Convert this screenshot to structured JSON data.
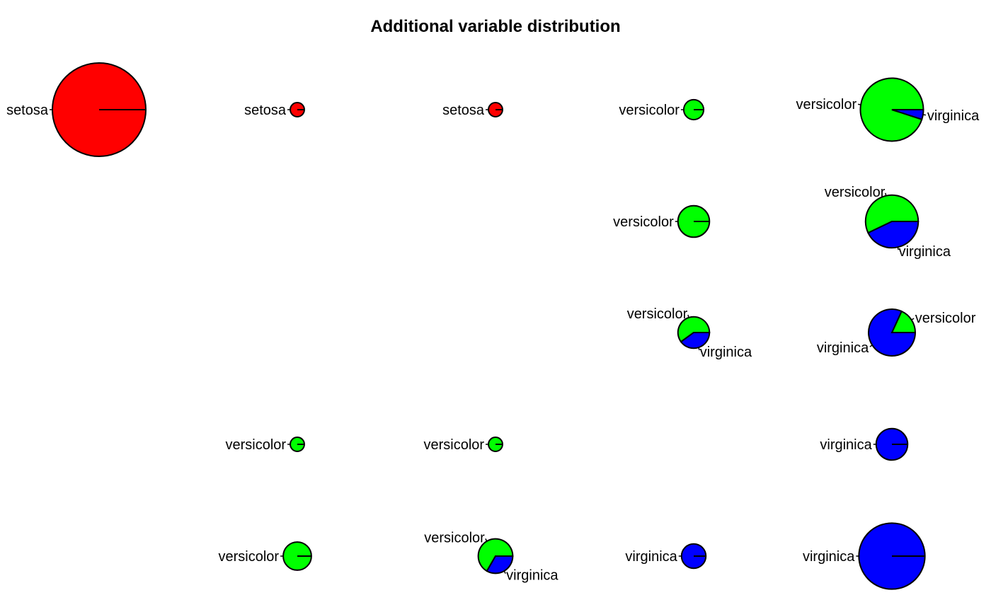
{
  "chart_data": {
    "type": "pie",
    "title": "Additional variable distribution",
    "colors": {
      "setosa": "#ff0000",
      "versicolor": "#00ff00",
      "virginica": "#0000ff"
    },
    "grid_columns": 5,
    "grid_rows": 5,
    "pies": [
      {
        "row": 1,
        "col": 1,
        "total": 44,
        "counts": {
          "setosa": 44,
          "versicolor": 0,
          "virginica": 0
        }
      },
      {
        "row": 1,
        "col": 2,
        "total": 1,
        "counts": {
          "setosa": 1,
          "versicolor": 0,
          "virginica": 0
        }
      },
      {
        "row": 1,
        "col": 3,
        "total": 1,
        "counts": {
          "setosa": 1,
          "versicolor": 0,
          "virginica": 0
        }
      },
      {
        "row": 1,
        "col": 4,
        "total": 2,
        "counts": {
          "setosa": 0,
          "versicolor": 2,
          "virginica": 0
        }
      },
      {
        "row": 1,
        "col": 5,
        "total": 20,
        "counts": {
          "setosa": 0,
          "versicolor": 19,
          "virginica": 1
        }
      },
      {
        "row": 2,
        "col": 4,
        "total": 5,
        "counts": {
          "setosa": 0,
          "versicolor": 5,
          "virginica": 0
        }
      },
      {
        "row": 2,
        "col": 5,
        "total": 14,
        "counts": {
          "setosa": 0,
          "versicolor": 8,
          "virginica": 6
        }
      },
      {
        "row": 3,
        "col": 4,
        "total": 5,
        "counts": {
          "setosa": 0,
          "versicolor": 3,
          "virginica": 2
        }
      },
      {
        "row": 3,
        "col": 5,
        "total": 11,
        "counts": {
          "setosa": 0,
          "versicolor": 2,
          "virginica": 9
        }
      },
      {
        "row": 4,
        "col": 2,
        "total": 1,
        "counts": {
          "setosa": 0,
          "versicolor": 1,
          "virginica": 0
        }
      },
      {
        "row": 4,
        "col": 3,
        "total": 1,
        "counts": {
          "setosa": 0,
          "versicolor": 1,
          "virginica": 0
        }
      },
      {
        "row": 4,
        "col": 5,
        "total": 5,
        "counts": {
          "setosa": 0,
          "versicolor": 0,
          "virginica": 5
        }
      },
      {
        "row": 5,
        "col": 2,
        "total": 4,
        "counts": {
          "setosa": 0,
          "versicolor": 4,
          "virginica": 0
        }
      },
      {
        "row": 5,
        "col": 3,
        "total": 6,
        "counts": {
          "setosa": 0,
          "versicolor": 4,
          "virginica": 2
        }
      },
      {
        "row": 5,
        "col": 4,
        "total": 3,
        "counts": {
          "setosa": 0,
          "versicolor": 0,
          "virginica": 3
        }
      },
      {
        "row": 5,
        "col": 5,
        "total": 22,
        "counts": {
          "setosa": 0,
          "versicolor": 0,
          "virginica": 22
        }
      }
    ]
  }
}
